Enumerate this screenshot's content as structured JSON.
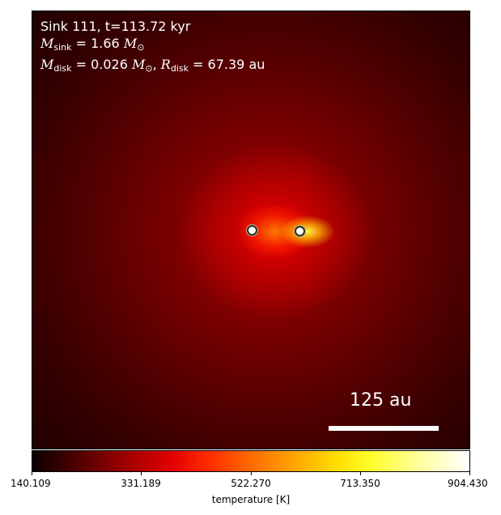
{
  "annotation": {
    "line1": "Sink 111, t=113.72 kyr",
    "m_sink_symbol": "M",
    "m_sink_sub": "sink",
    "m_sink_value": " = 1.66 ",
    "m_sink_unit": "M",
    "m_sink_unit_sub": "⊙",
    "m_disk_symbol": "M",
    "m_disk_sub": "disk",
    "m_disk_value": " = 0.026 ",
    "m_disk_unit": "M",
    "m_disk_unit_sub": "⊙",
    "r_sep": ", ",
    "r_disk_symbol": "R",
    "r_disk_sub": "disk",
    "r_disk_value": " = 67.39 au"
  },
  "scalebar": {
    "label": "125 au"
  },
  "colorbar": {
    "title": "temperature [K]",
    "ticks": [
      "140.109",
      "331.189",
      "522.270",
      "713.350",
      "904.430"
    ],
    "colormap": "hot"
  },
  "colors": {
    "background": "#1a0000",
    "core": "#ffff50",
    "text": "#ffffff"
  }
}
